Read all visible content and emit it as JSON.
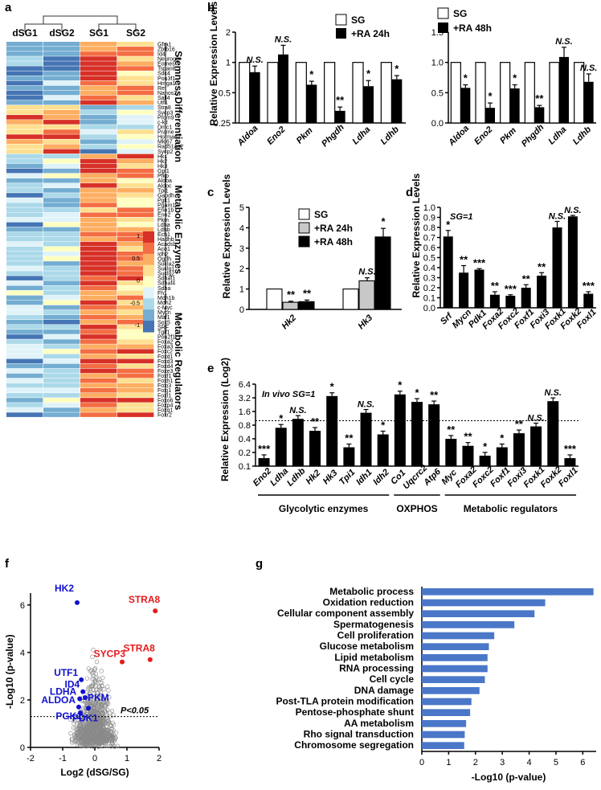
{
  "panels": {
    "a": "a",
    "b": "b",
    "c": "c",
    "d": "d",
    "e": "e",
    "f": "f",
    "g": "g"
  },
  "heatmap": {
    "samples": [
      "dSG1",
      "dSG2",
      "SG1",
      "SG2"
    ],
    "colorbar_ticks": [
      "1",
      "0.5",
      "0",
      "-0.5",
      "-1"
    ],
    "colorbar_colors": [
      "#d73027",
      "#f46d43",
      "#fdae61",
      "#fee090",
      "#ffffbf",
      "#e0f3f8",
      "#abd9e9",
      "#74add1",
      "#4575b4"
    ],
    "groups": [
      {
        "name": "Stemness",
        "genes": [
          "Gfra1",
          "Zbtb16",
          "Id4",
          "Neurog3",
          "Eomes",
          "Tspan8",
          "Sdc4",
          "Pou3f1",
          "Hmga1",
          "Ret",
          "Nanos2",
          "Sall4",
          "Utf1"
        ]
      },
      {
        "name": "Differentiation",
        "genes": [
          "Stra8",
          "Sycp3",
          "Prdm9",
          "c-kit",
          "Dmc1",
          "Prame",
          "Hormad1",
          "Mki67",
          "Rad51ap2",
          "Sycp2"
        ]
      },
      {
        "name": "Metabolic Enzymes",
        "genes": [
          "Hk1",
          "Hk2",
          "Hk3",
          "Gpi1",
          "Pfkp",
          "Aldoa",
          "Aldoc",
          "Tpi1",
          "Gapdh",
          "Pgk1",
          "Pgam1",
          "Eno1b",
          "Eno2",
          "Pkm",
          "Ldha",
          "Ldhb",
          "Ech1",
          "Hadhb",
          "Acadsb",
          "Aco1",
          "Idh2",
          "Ogdh",
          "Sucla2",
          "Suclg1",
          "Suclg2",
          "Sdhaf1",
          "Sdhaf4",
          "Sdha",
          "Fh1",
          "Mdh1b",
          "Mdh2"
        ]
      },
      {
        "name": "Metabolic Regulators",
        "genes": [
          "c-Myc",
          "Mycn",
          "Maf1",
          "Sox5",
          "SRF",
          "Tgif1",
          "Pou2f1",
          "Foxa2",
          "Foxa3",
          "Foxc2",
          "Foxd1",
          "Foxd3",
          "Foxd4",
          "Foxe3",
          "Foxf1",
          "Foxh1",
          "Foxi3",
          "Foxj1",
          "Foxl1",
          "Foxo6",
          "Foxp4",
          "Foxq1",
          "Foxr2"
        ]
      }
    ]
  },
  "chart_data": [
    {
      "id": "b1",
      "type": "bar",
      "ylabel": "Relative Expression Levels",
      "yscale": "log2",
      "ylim": [
        0.25,
        2
      ],
      "yticks": [
        "2",
        "1",
        "0.5",
        "0.25"
      ],
      "legend": [
        "SG",
        "+RA 24h"
      ],
      "categories": [
        "Aldoa",
        "Eno2",
        "Pkm",
        "Phgdh",
        "Ldha",
        "Ldhb"
      ],
      "series": [
        {
          "name": "SG",
          "values": [
            1,
            1,
            1,
            1,
            1,
            1
          ]
        },
        {
          "name": "+RA 24h",
          "values": [
            0.8,
            1.2,
            0.6,
            0.33,
            0.58,
            0.68
          ]
        }
      ],
      "errors": [
        0.12,
        0.28,
        0.05,
        0.03,
        0.08,
        0.06
      ],
      "sig": [
        "N.S.",
        "N.S.",
        "*",
        "**",
        "*",
        "*"
      ]
    },
    {
      "id": "b2",
      "type": "bar",
      "yscale": "linear",
      "ylim": [
        0,
        1.5
      ],
      "yticks": [
        "0.0",
        "0.5",
        "1.0",
        "1.5"
      ],
      "legend": [
        "SG",
        "+RA 48h"
      ],
      "categories": [
        "Aldoa",
        "Eno2",
        "Pkm",
        "Phgdh",
        "Ldha",
        "Ldhb"
      ],
      "series": [
        {
          "name": "SG",
          "values": [
            1,
            1,
            1,
            1,
            1,
            1
          ]
        },
        {
          "name": "+RA 48h",
          "values": [
            0.58,
            0.25,
            0.57,
            0.26,
            1.09,
            0.68
          ]
        }
      ],
      "errors": [
        0.05,
        0.08,
        0.06,
        0.03,
        0.16,
        0.13
      ],
      "sig": [
        "*",
        "*",
        "*",
        "**",
        "N.S.",
        "N.S."
      ]
    },
    {
      "id": "c",
      "type": "bar",
      "ylabel": "Relative Expression Levels",
      "ylim": [
        0,
        5
      ],
      "yticks": [
        "0",
        "1",
        "2",
        "3",
        "4",
        "5"
      ],
      "legend": [
        "SG",
        "+RA 24h",
        "+RA 48h"
      ],
      "categories": [
        "Hk2",
        "Hk3"
      ],
      "series": [
        {
          "name": "SG",
          "values": [
            1,
            1
          ]
        },
        {
          "name": "+RA 24h",
          "values": [
            0.35,
            1.4
          ]
        },
        {
          "name": "+RA 48h",
          "values": [
            0.38,
            3.55
          ]
        }
      ],
      "errors": [
        [
          0,
          0.05,
          0.08
        ],
        [
          0,
          0.15,
          0.42
        ]
      ],
      "sig": [
        [
          "",
          "**",
          "**"
        ],
        [
          "",
          "N.S.",
          "*"
        ]
      ]
    },
    {
      "id": "d",
      "type": "bar",
      "ylabel": "Relative Expression Levels",
      "title": "SG=1",
      "ylim": [
        0,
        1.0
      ],
      "yticks": [
        "0.0",
        "0.1",
        "0.2",
        "0.3",
        "0.4",
        "0.5",
        "0.6",
        "0.7",
        "0.8",
        "0.9",
        "1.0"
      ],
      "categories": [
        "Srf",
        "Mycn",
        "Pdk1",
        "Foxa2",
        "Foxc2",
        "Foxf1",
        "Foxi3",
        "Foxk1",
        "Foxk2",
        "Foxl1"
      ],
      "values": [
        0.71,
        0.35,
        0.38,
        0.13,
        0.12,
        0.2,
        0.32,
        0.8,
        0.91,
        0.14
      ],
      "errors": [
        0.06,
        0.07,
        0.01,
        0.03,
        0.01,
        0.03,
        0.03,
        0.06,
        0.01,
        0.02
      ],
      "sig": [
        "*",
        "**",
        "***",
        "**",
        "***",
        "**",
        "**",
        "N.S.",
        "N.S.",
        "***"
      ]
    },
    {
      "id": "e",
      "type": "bar",
      "ylabel": "Relative Expression (Log2)",
      "title": "In vivo SG=1",
      "yscale": "log2",
      "ylim": [
        0.1,
        6.4
      ],
      "yticks": [
        "6.4",
        "3.2",
        "1.6",
        "0.8",
        "0.4",
        "0.2",
        "0.1"
      ],
      "categories": [
        "Eno2",
        "Ldha",
        "Ldhb",
        "Hk2",
        "Hk3",
        "Tpi1",
        "Idh1",
        "Idh2",
        "Co1",
        "Uqcrc2",
        "Atp6",
        "Myc",
        "Foxa2",
        "Foxc2",
        "Foxf1",
        "Foxi3",
        "Foxk1",
        "Foxk2",
        "Foxl1"
      ],
      "values": [
        0.15,
        0.7,
        1.1,
        0.6,
        3.5,
        0.26,
        1.5,
        0.5,
        3.8,
        2.6,
        2.3,
        0.4,
        0.28,
        0.17,
        0.26,
        0.53,
        0.75,
        2.7,
        0.15
      ],
      "sig": [
        "***",
        "*",
        "N.S.",
        "**",
        "*",
        "**",
        "N.S.",
        "*",
        "*",
        "*",
        "**",
        "**",
        "**",
        "*",
        "*",
        "**",
        "N.S.",
        "N.S.",
        "***"
      ],
      "groups": [
        {
          "label": "Glycolytic enzymes",
          "from": 0,
          "to": 7
        },
        {
          "label": "OXPHOS",
          "from": 8,
          "to": 10
        },
        {
          "label": "Metabolic regulators",
          "from": 11,
          "to": 18
        }
      ]
    },
    {
      "id": "f",
      "type": "scatter",
      "xlabel": "Log2 (dSG/SG)",
      "ylabel": "-Log10 (p-value)",
      "xlim": [
        -2,
        2
      ],
      "ylim": [
        0,
        6.5
      ],
      "xticks": [
        "-2",
        "-1",
        "0",
        "1",
        "2"
      ],
      "yticks": [
        "0",
        "2",
        "4",
        "6"
      ],
      "threshold_label": "P<0.05",
      "threshold": 1.3,
      "labeled_points": [
        {
          "label": "HK2",
          "x": -0.55,
          "y": 6.1,
          "color": "#1010d0"
        },
        {
          "label": "UTF1",
          "x": -0.42,
          "y": 2.85,
          "color": "#1010d0"
        },
        {
          "label": "ID4",
          "x": -0.37,
          "y": 2.35,
          "color": "#1010d0"
        },
        {
          "label": "LDHA",
          "x": -0.47,
          "y": 2.05,
          "color": "#1010d0"
        },
        {
          "label": "PKM",
          "x": -0.3,
          "y": 2.1,
          "color": "#1010d0"
        },
        {
          "label": "ALDOA",
          "x": -0.5,
          "y": 1.7,
          "color": "#1010d0"
        },
        {
          "label": "PGK1",
          "x": -0.45,
          "y": 1.45,
          "color": "#1010d0"
        },
        {
          "label": "PDK1",
          "x": -0.2,
          "y": 1.65,
          "color": "#1010d0"
        },
        {
          "label": "SYCP3",
          "x": 0.85,
          "y": 3.6,
          "color": "#e41a1c"
        },
        {
          "label": "STRA8",
          "x": 1.88,
          "y": 5.75,
          "color": "#e41a1c"
        },
        {
          "label": "STRA8",
          "x": 1.72,
          "y": 3.7,
          "color": "#e41a1c"
        }
      ]
    },
    {
      "id": "g",
      "type": "bar",
      "orientation": "horizontal",
      "xlabel": "-Log10 (p-value)",
      "xlim": [
        0,
        6.5
      ],
      "xticks": [
        "0",
        "1",
        "2",
        "3",
        "4",
        "5",
        "6"
      ],
      "categories": [
        "Metabolic process",
        "Oxidation reduction",
        "Cellular component assembly",
        "Spermatogenesis",
        "Cell proliferation",
        "Glucose metabolism",
        "Lipid metabolism",
        "RNA processing",
        "Cell cycle",
        "DNA damage",
        "Post-TLA protein modification",
        "Pentose-phosphate shunt",
        "AA metabolism",
        "Rho signal transduction",
        "Chromosome segregation"
      ],
      "values": [
        6.4,
        4.6,
        4.2,
        3.45,
        2.7,
        2.5,
        2.45,
        2.45,
        2.35,
        2.15,
        1.85,
        1.8,
        1.65,
        1.6,
        1.58
      ]
    }
  ],
  "colors": {
    "bar": "#000000",
    "grey": "#c8c8c8",
    "hbar": "#4a77c8",
    "scatter": "#8a8a8a"
  }
}
